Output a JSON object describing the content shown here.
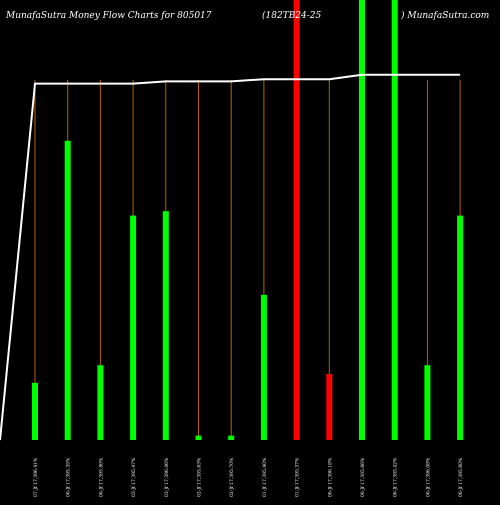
{
  "header": {
    "left": "MunafaSutra  Money Flow  Charts for 805017",
    "middle": "(182TB24-25",
    "right": ") MunafaSutra.com"
  },
  "chart_data": {
    "type": "bar",
    "ylim": [
      0,
      100
    ],
    "colors": {
      "up": "#00ff00",
      "down": "#ff0000",
      "guide": "#b36200",
      "line": "#ffffff",
      "background": "#000000"
    },
    "categories": [
      "07-Jf 17,396.41%",
      "06-Jf 17,395.35%",
      "06-Jf 17,395.80%",
      "03-Jf 17,395.47%",
      "03-Jf 17,396.06%",
      "02-Jf 17,395.63%",
      "02-Jf 17,395.70%",
      "01-Jf 17,395.90%",
      "01-Jf 17,395.37%",
      "06-Jf 17,396.18%",
      "06-Jf 17,395.66%",
      "06-Jf 17,395.42%",
      "06-Jf 17,396.08%",
      "06-Jf 17,395.60%"
    ],
    "series": [
      {
        "values": [
          13,
          68,
          17,
          51,
          52,
          1,
          1,
          33,
          100,
          15,
          100,
          100,
          17,
          51
        ],
        "colors": [
          "up",
          "up",
          "up",
          "up",
          "up",
          "up",
          "up",
          "up",
          "down",
          "down",
          "up",
          "up",
          "up",
          "up"
        ]
      }
    ],
    "line": [
      81,
      81,
      81,
      81,
      81.5,
      81.5,
      81.5,
      82,
      82,
      82,
      83,
      83,
      83,
      83
    ],
    "line_start": 0
  }
}
